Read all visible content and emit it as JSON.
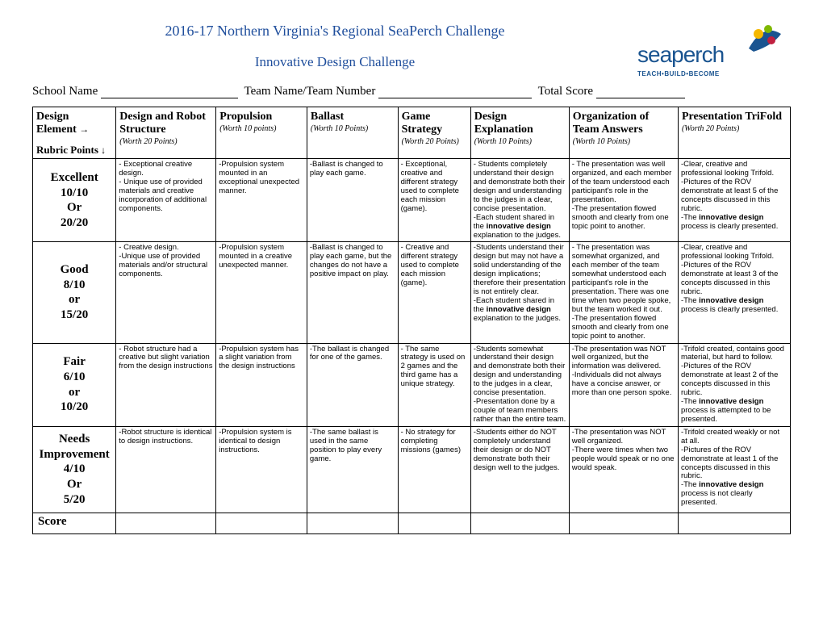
{
  "title_main": "2016-17 Northern Virginia's Regional SeaPerch Challenge",
  "title_sub": "Innovative Design Challenge",
  "logo": {
    "word": "seaperch",
    "tag": "TEACH•BUILD•BECOME"
  },
  "fields": {
    "school": "School Name",
    "team": "Team Name/Team Number",
    "total": "Total Score"
  },
  "header": {
    "r0": {
      "l1": "Design",
      "l2": "Element",
      "rubric": "Rubric Points"
    },
    "c1": {
      "t": "Design and Robot Structure",
      "w": "(Worth 20 Points)"
    },
    "c2": {
      "t": "Propulsion",
      "w": "(Worth 10 points)"
    },
    "c3": {
      "t": "Ballast",
      "w": "(Worth 10 Points)"
    },
    "c4": {
      "t": "Game Strategy",
      "w": "(Worth 20 Points)"
    },
    "c5": {
      "t": "Design Explanation",
      "w": "(Worth 10 Points)"
    },
    "c6": {
      "t": "Organization of Team Answers",
      "w": "(Worth 10 Points)"
    },
    "c7": {
      "t": "Presentation TriFold",
      "w": "(Worth 20 Points)"
    }
  },
  "rows": {
    "excellent": {
      "label": [
        "Excellent",
        "10/10",
        "Or",
        "20/20"
      ],
      "c1": "-      Exceptional creative design.\n-      Unique use of provided materials and creative incorporation of additional components.",
      "c2": "-Propulsion system mounted in an exceptional unexpected manner.",
      "c3": "-Ballast is changed to play each game.",
      "c4": "- Exceptional, creative and different strategy used to complete each mission (game).",
      "c5": "- Students completely understand their design and demonstrate both their design and understanding to the judges in a clear, concise presentation.\n-Each student shared in the innovative design explanation to the judges.",
      "c6": "- The presentation was well organized, and each member of the team understood each participant's role in the presentation.\n-The presentation flowed smooth and clearly from one topic point to another.",
      "c7": "-Clear, creative and professional looking Trifold.\n-Pictures of the ROV demonstrate at least 5 of the concepts discussed in this rubric.\n-The innovative design process is clearly presented."
    },
    "good": {
      "label": [
        "Good",
        "8/10",
        "or",
        "15/20"
      ],
      "c1": "-      Creative design.\n-Unique use of provided materials and/or structural components.",
      "c2": "-Propulsion system mounted in a creative unexpected manner.",
      "c3": "-Ballast is changed to play each game, but the changes do not have a positive impact on play.",
      "c4": "- Creative and different strategy used to complete each mission (game).",
      "c5": "-Students understand their design but may not have a solid understanding of the design  implications; therefore their presentation is not entirely clear.\n-Each student shared in the innovative design explanation to the judges.",
      "c6": "- The presentation was somewhat organized, and each member of the team somewhat understood each participant's role in the presentation. There was one time when two people spoke, but the team worked it out.\n-The presentation flowed smooth and clearly from one topic point to another.",
      "c7": "-Clear, creative and professional looking Trifold.\n-Pictures of the ROV demonstrate at least 3 of the concepts discussed in this rubric.\n-The innovative design process is clearly presented."
    },
    "fair": {
      "label": [
        "Fair",
        "6/10",
        "or",
        "10/20"
      ],
      "c1": "- Robot structure had a creative but slight variation from the design instructions",
      "c2": "-Propulsion system has a slight variation from the design instructions",
      "c3": "-The ballast is changed for one of the games.",
      "c4": "- The same strategy is used on 2 games and the third game has a unique strategy.",
      "c5": "-Students somewhat understand their design and demonstrate both their design and understanding to the judges in a clear, concise presentation.\n-Presentation done by a couple of team members rather than the entire team.",
      "c6": "-The presentation was NOT well organized, but the information was delivered.\n-Individuals did not always have a concise answer, or more than one person spoke.",
      "c7": "-Trifold created, contains good material, but hard to follow.\n-Pictures of the ROV demonstrate at least 2 of the concepts discussed in this rubric.\n-The innovative design process is attempted to be presented.",
      "c7_bold": "innovative design"
    },
    "needs": {
      "label": [
        "Needs",
        "Improvement",
        "4/10",
        "Or",
        "5/20"
      ],
      "c1": "-Robot structure is identical to design instructions.",
      "c2": "-Propulsion system is identical to design instructions.",
      "c3": "-The same ballast is used in the same position to play every game.",
      "c4": "- No strategy for completing missions (games)",
      "c5": "-Students either do NOT completely understand their design or do NOT demonstrate both their design well to the judges.",
      "c6": "-The presentation was NOT well organized.\n-There were times when two people would speak or no one would speak.",
      "c7": "-Trifold created weakly or not at all.\n-Pictures of the ROV demonstrate at least 1 of the concepts discussed in this rubric.\n-The innovative design process is not clearly presented.",
      "c7_bold": "innovative design"
    }
  },
  "score_label": "Score"
}
